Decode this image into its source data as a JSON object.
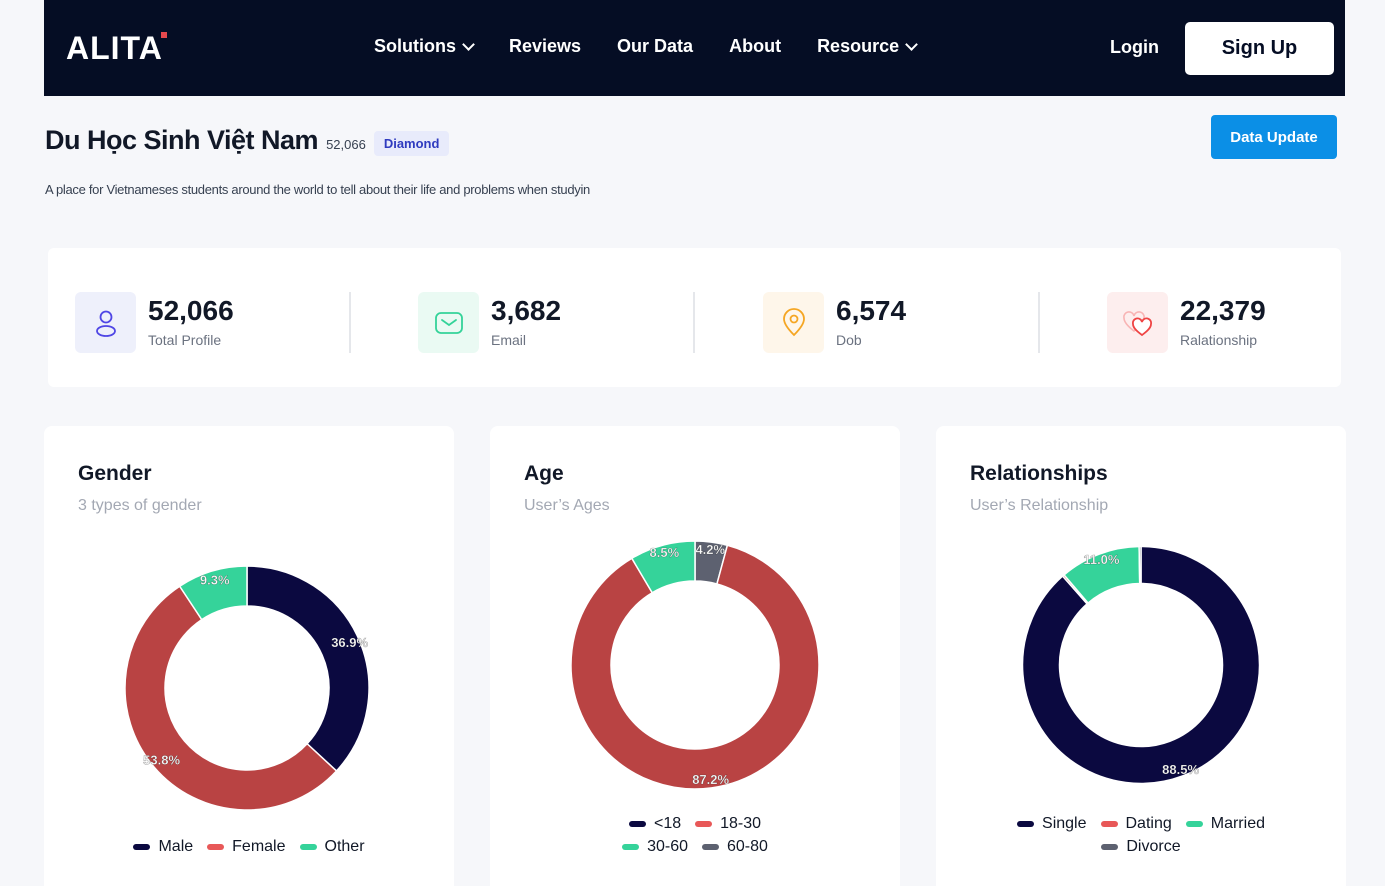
{
  "nav": {
    "logo": "ALITA",
    "menu": [
      {
        "label": "Solutions",
        "dropdown": true
      },
      {
        "label": "Reviews",
        "dropdown": false
      },
      {
        "label": "Our Data",
        "dropdown": false
      },
      {
        "label": "About",
        "dropdown": false
      },
      {
        "label": "Resource",
        "dropdown": true
      }
    ],
    "login": "Login",
    "signup": "Sign Up"
  },
  "header": {
    "title": "Du Học Sinh Việt Nam",
    "count": "52,066",
    "badge": "Diamond",
    "description": "A place for Vietnameses students around the world to tell about their life and problems when studyin",
    "data_update": "Data Update"
  },
  "stats": [
    {
      "value": "52,066",
      "label": "Total Profile",
      "icon": "user-icon",
      "bg": "#eef0fb",
      "color": "#4f46e5"
    },
    {
      "value": "3,682",
      "label": "Email",
      "icon": "mail-icon",
      "bg": "#eafaf3",
      "color": "#34d399"
    },
    {
      "value": "6,574",
      "label": "Dob",
      "icon": "location-pin-icon",
      "bg": "#fef6ea",
      "color": "#f5a623"
    },
    {
      "value": "22,379",
      "label": "Ralationship",
      "icon": "hearts-icon",
      "bg": "#fdeeee",
      "color": "#ef4444"
    }
  ],
  "charts": {
    "gender": {
      "title": "Gender",
      "subtitle": "3 types of gender"
    },
    "age": {
      "title": "Age",
      "subtitle": "User’s Ages"
    },
    "relationship": {
      "title": "Relationships",
      "subtitle": "User’s Relationship"
    }
  },
  "chart_data": [
    {
      "type": "pie",
      "title": "Gender",
      "categories": [
        "Male",
        "Female",
        "Other"
      ],
      "values": [
        36.9,
        53.8,
        9.3
      ],
      "labels": [
        "36.9%",
        "53.8%",
        "9.3%"
      ],
      "colors": [
        "#0b0940",
        "#b94343",
        "#35d39a"
      ]
    },
    {
      "type": "pie",
      "title": "Age",
      "categories": [
        "60-80",
        "18-30",
        "30-60"
      ],
      "values": [
        4.2,
        87.2,
        8.5
      ],
      "labels": [
        "4.2%",
        "87.2%",
        "8.5%"
      ],
      "colors": [
        "#5d6170",
        "#b94343",
        "#35d39a"
      ],
      "legend": [
        {
          "label": "<18",
          "color": "#0b0940"
        },
        {
          "label": "18-30",
          "color": "#e85858"
        },
        {
          "label": "30-60",
          "color": "#35d39a"
        },
        {
          "label": "60-80",
          "color": "#5d6170"
        }
      ]
    },
    {
      "type": "pie",
      "title": "Relationships",
      "categories": [
        "Single",
        "Dating",
        "Married",
        "Divorce"
      ],
      "values": [
        88.5,
        0.25,
        11.0,
        0.25
      ],
      "labels": [
        "88.5%",
        "",
        "11.0%",
        ""
      ],
      "colors": [
        "#0b0940",
        "#b94343",
        "#35d39a",
        "#5d6170"
      ],
      "legend": [
        {
          "label": "Single",
          "color": "#0b0940"
        },
        {
          "label": "Dating",
          "color": "#e85858"
        },
        {
          "label": "Married",
          "color": "#35d39a"
        },
        {
          "label": "Divorce",
          "color": "#5d6170"
        }
      ]
    }
  ],
  "gender_legend": [
    {
      "label": "Male",
      "color": "#0b0940"
    },
    {
      "label": "Female",
      "color": "#e85858"
    },
    {
      "label": "Other",
      "color": "#35d39a"
    }
  ]
}
